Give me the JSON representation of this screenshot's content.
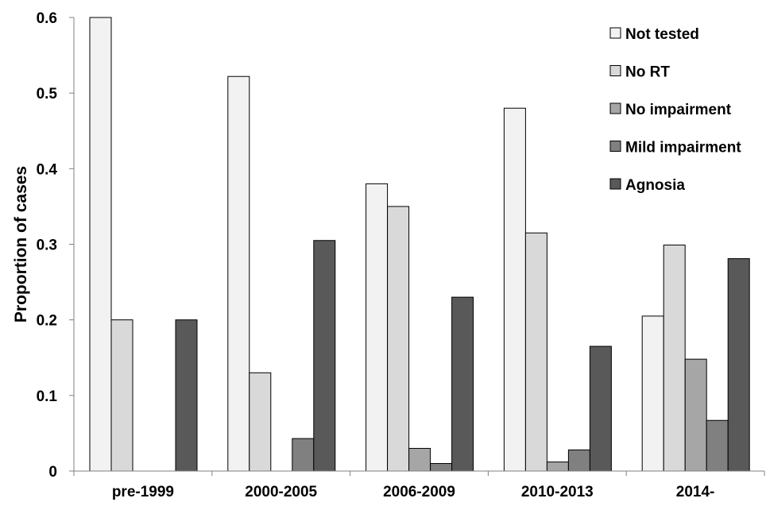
{
  "chart_data": {
    "type": "bar",
    "title": "",
    "xlabel": "",
    "ylabel": "Proportion of cases",
    "ylim": [
      0,
      0.6
    ],
    "yticks": [
      "0",
      "0.1",
      "0.2",
      "0.3",
      "0.4",
      "0.5",
      "0.6"
    ],
    "grid": false,
    "legend_position": "top-right",
    "categories": [
      "pre-1999",
      "2000-2005",
      "2006-2009",
      "2010-2013",
      "2014-"
    ],
    "series": [
      {
        "name": "Not tested",
        "color": "#f2f2f2",
        "values": [
          0.6,
          0.522,
          0.38,
          0.48,
          0.205
        ]
      },
      {
        "name": "No RT",
        "color": "#d9d9d9",
        "values": [
          0.2,
          0.13,
          0.35,
          0.315,
          0.299
        ]
      },
      {
        "name": "No impairment",
        "color": "#a6a6a6",
        "values": [
          0,
          0,
          0.03,
          0.012,
          0.148
        ]
      },
      {
        "name": "Mild impairment",
        "color": "#808080",
        "values": [
          0,
          0.043,
          0.01,
          0.028,
          0.067
        ]
      },
      {
        "name": "Agnosia",
        "color": "#595959",
        "values": [
          0.2,
          0.305,
          0.23,
          0.165,
          0.281
        ]
      }
    ]
  }
}
